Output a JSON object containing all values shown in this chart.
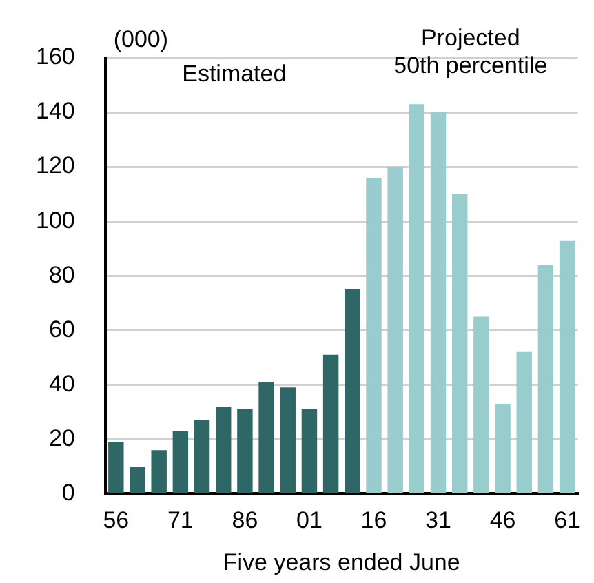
{
  "chart_data": {
    "type": "bar",
    "ylabel": "(000)",
    "xlabel": "Five years ended June",
    "categories": [
      "56",
      null,
      null,
      "71",
      null,
      null,
      "86",
      null,
      null,
      "01",
      null,
      null,
      "16",
      null,
      null,
      "31",
      null,
      null,
      "46",
      null,
      null,
      "61"
    ],
    "values": [
      19,
      10,
      16,
      23,
      27,
      32,
      31,
      41,
      39,
      31,
      51,
      75,
      116,
      120,
      143,
      140,
      110,
      65,
      33,
      52,
      84,
      93
    ],
    "colors": [
      "#2f6666",
      "#2f6666",
      "#2f6666",
      "#2f6666",
      "#2f6666",
      "#2f6666",
      "#2f6666",
      "#2f6666",
      "#2f6666",
      "#2f6666",
      "#2f6666",
      "#2f6666",
      "#99cccc",
      "#99cccc",
      "#99cccc",
      "#99cccc",
      "#99cccc",
      "#99cccc",
      "#99cccc",
      "#99cccc",
      "#99cccc",
      "#99cccc"
    ],
    "annotations": [
      "Estimated",
      "Projected\n50th percentile"
    ],
    "ylim": [
      0,
      160
    ],
    "yticks": [
      0,
      20,
      40,
      60,
      80,
      100,
      120,
      140,
      160
    ],
    "grid": "y",
    "legend": false
  }
}
